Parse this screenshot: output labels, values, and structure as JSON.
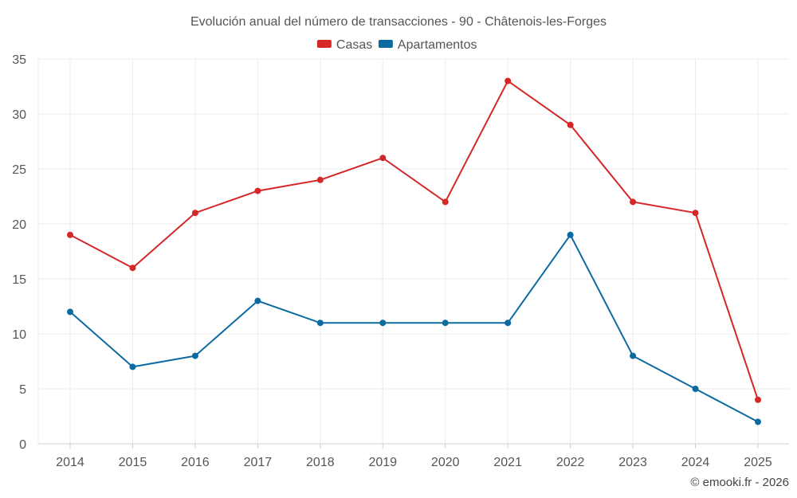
{
  "chart_data": {
    "type": "line",
    "title": "Evolución anual del número de transacciones - 90 - Châtenois-les-Forges",
    "categories": [
      "2014",
      "2015",
      "2016",
      "2017",
      "2018",
      "2019",
      "2020",
      "2021",
      "2022",
      "2023",
      "2024",
      "2025"
    ],
    "series": [
      {
        "name": "Casas",
        "color": "#d62728",
        "values": [
          19,
          16,
          21,
          23,
          24,
          26,
          22,
          33,
          29,
          22,
          21,
          4
        ]
      },
      {
        "name": "Apartamentos",
        "color": "#0b6aa0",
        "values": [
          12,
          7,
          8,
          13,
          11,
          11,
          11,
          11,
          19,
          8,
          5,
          2
        ]
      }
    ],
    "ylim": [
      0,
      35
    ],
    "yticks": [
      0,
      5,
      10,
      15,
      20,
      25,
      30,
      35
    ],
    "xlabel": "",
    "ylabel": "",
    "grid": true,
    "legend": "top-center"
  },
  "credit": "© emooki.fr - 2026"
}
